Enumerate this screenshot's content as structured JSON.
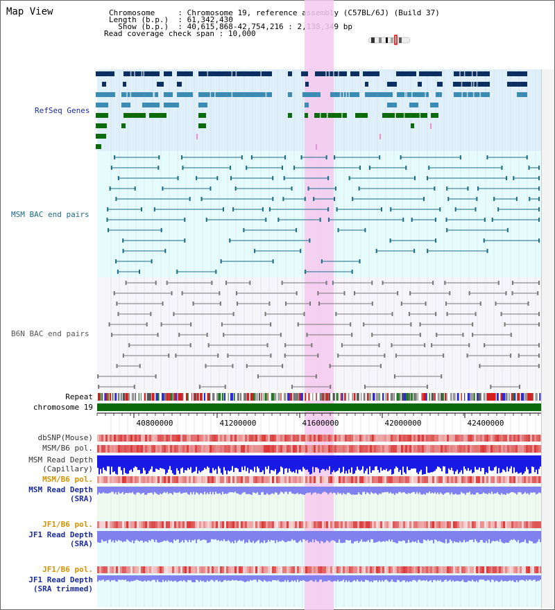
{
  "page_title": "Map View",
  "header": {
    "chromosome_label": "Chromosome",
    "chromosome_value": "Chromosome 19, reference assembly (C57BL/6J) (Build 37)",
    "length_label": "Length (b.p.)",
    "length_value": "61,342,430",
    "show_label": "Show (b.p.)",
    "show_value": "40,615,868-42,754,216 : 2,138,349 bp",
    "coverage_label": "Read coverage check span",
    "coverage_value": "10,000"
  },
  "tracks": {
    "refseq": "RefSeq Genes",
    "msm_bac": "MSM BAC end pairs",
    "b6n_bac": "B6N BAC end pairs",
    "repeat": "Repeat",
    "chromosome": "chromosome 19",
    "dbsnp": "dbSNP(Mouse)",
    "msm_b6_pol": "MSM/B6 pol.",
    "msm_read_depth_cap_1": "MSM Read Depth",
    "msm_read_depth_cap_2": "(Capillary)",
    "msm_b6_pol_2": "MSM/B6 pol.",
    "msm_read_depth_sra_1": "MSM Read Depth",
    "msm_read_depth_sra_2": "(SRA)",
    "jf1_b6_pol": "JF1/B6 pol.",
    "jf1_read_depth_sra_1": "JF1 Read Depth",
    "jf1_read_depth_sra_2": "(SRA)",
    "jf1_b6_pol_2": "JF1/B6 pol.",
    "jf1_read_depth_trim_1": "JF1 Read Depth",
    "jf1_read_depth_trim_2": "(SRA trimmed)"
  },
  "axis_ticks": [
    "40800000",
    "41200000",
    "41600000",
    "42000000",
    "42400000"
  ],
  "colors": {
    "highlight": "#f6c9ef",
    "refseq_bg": "#dff0fa",
    "msm_bg": "#e6fbfb",
    "b6n_bg": "#f6f6fa",
    "sra_bg": "#eefaee",
    "jf1_bg": "#e6fbfb",
    "navy": "#0c2f62",
    "teal": "#3b8bb3",
    "green": "#0b6b0b",
    "msm_pair": "#1b6b86",
    "b6n_pair": "#777777",
    "depth_blue": "#1a1ae6",
    "depth_purple": "#8080ee",
    "label_blue": "#1b2c9c",
    "label_orange": "#d49200",
    "label_teal": "#1b6b86"
  },
  "icons": {
    "chromosome_ideogram": "chromosome-ideogram-icon"
  }
}
